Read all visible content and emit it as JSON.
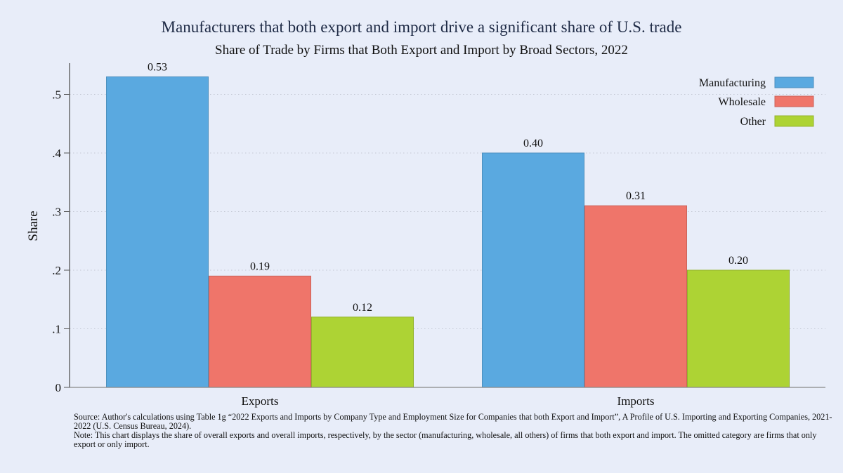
{
  "chart_data": {
    "type": "bar",
    "title": "Manufacturers that both export and import drive a significant share of U.S. trade",
    "subtitle": "Share of Trade by Firms that Both Export and Import by Broad Sectors, 2022",
    "xlabel": "",
    "ylabel": "Share",
    "categories": [
      "Exports",
      "Imports"
    ],
    "series": [
      {
        "name": "Manufacturing",
        "color": "#5aa9e0",
        "values": [
          0.53,
          0.4
        ],
        "labels": [
          "0.53",
          "0.40"
        ]
      },
      {
        "name": "Wholesale",
        "color": "#ef756a",
        "values": [
          0.19,
          0.31
        ],
        "labels": [
          "0.19",
          "0.31"
        ]
      },
      {
        "name": "Other",
        "color": "#add334",
        "values": [
          0.12,
          0.2
        ],
        "labels": [
          "0.12",
          "0.20"
        ]
      }
    ],
    "ylim": [
      0,
      0.55
    ],
    "yticks": [
      0,
      0.1,
      0.2,
      0.3,
      0.4,
      0.5
    ],
    "ytick_labels": [
      "0",
      ".1",
      ".2",
      ".3",
      ".4",
      ".5"
    ],
    "grid": true,
    "legend": "top-right"
  },
  "notes": {
    "source": "Source: Author's calculations using Table 1g “2022 Exports and Imports by Company Type and Employment Size for Companies that both Export and Import”, A Profile of U.S. Importing and Exporting Companies, 2021-2022 (U.S. Census Bureau, 2024).",
    "note": "Note: This chart displays the share of overall exports and overall imports, respectively, by the sector (manufacturing, wholesale, all others) of firms that both export and import. The omitted category are firms that only export or only import."
  }
}
